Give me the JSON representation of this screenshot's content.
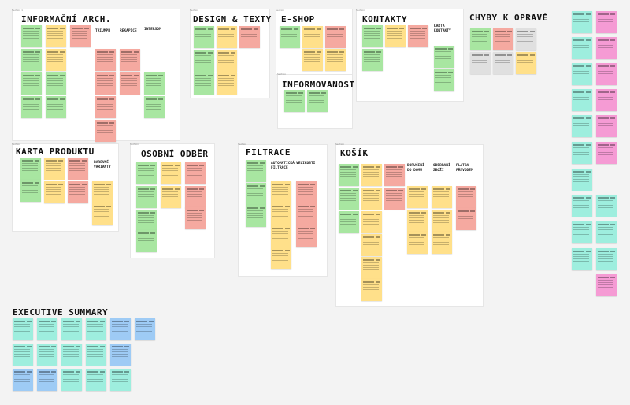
{
  "board": {
    "sections": {
      "ia": {
        "title": "INFORMAČNÍ ARCH.",
        "tag": "Section 1",
        "columns": [
          "TRIUMPH",
          "REKAPICE",
          "INTERSOM"
        ]
      },
      "design": {
        "title": "DESIGN & TEXTY",
        "tag": "Section"
      },
      "eshop": {
        "title": "E-SHOP",
        "tag": "Section"
      },
      "informovanost": {
        "title": "INFORMOVANOST",
        "tag": "Section"
      },
      "kontakty": {
        "title": "KONTAKTY",
        "tag": "Section",
        "subtitle": "KARTA KONTAKTY"
      },
      "chyby": {
        "title": "CHYBY K OPRAVĚ"
      },
      "karta": {
        "title": "KARTA PRODUKTU",
        "tag": "Section",
        "subtitle": "BAREVNÉ VARIANTY"
      },
      "odber": {
        "title": "OSOBNÍ ODBĚR",
        "tag": "Section"
      },
      "filtrace": {
        "title": "FILTRACE",
        "tag": "Section",
        "columns": [
          "AUTOMATICKÁ FILTRACE",
          "VELIKOSTI"
        ]
      },
      "kosik": {
        "title": "KOŠÍK",
        "tag": "Section",
        "columns": [
          "DORUČENÍ DO DOMU",
          "ODEBRANÍ ZBOŽÍ",
          "PLATBA PŘEVODEM"
        ]
      },
      "summary": {
        "title": "EXECUTIVE SUMMARY"
      }
    }
  },
  "colors": {
    "green": "#a8e6a1",
    "yellow": "#ffe08a",
    "red": "#f5a9a0",
    "cyan": "#9eeede",
    "blue": "#9ecbf5",
    "pink": "#f59bd4",
    "grey": "#e0e0e0"
  }
}
